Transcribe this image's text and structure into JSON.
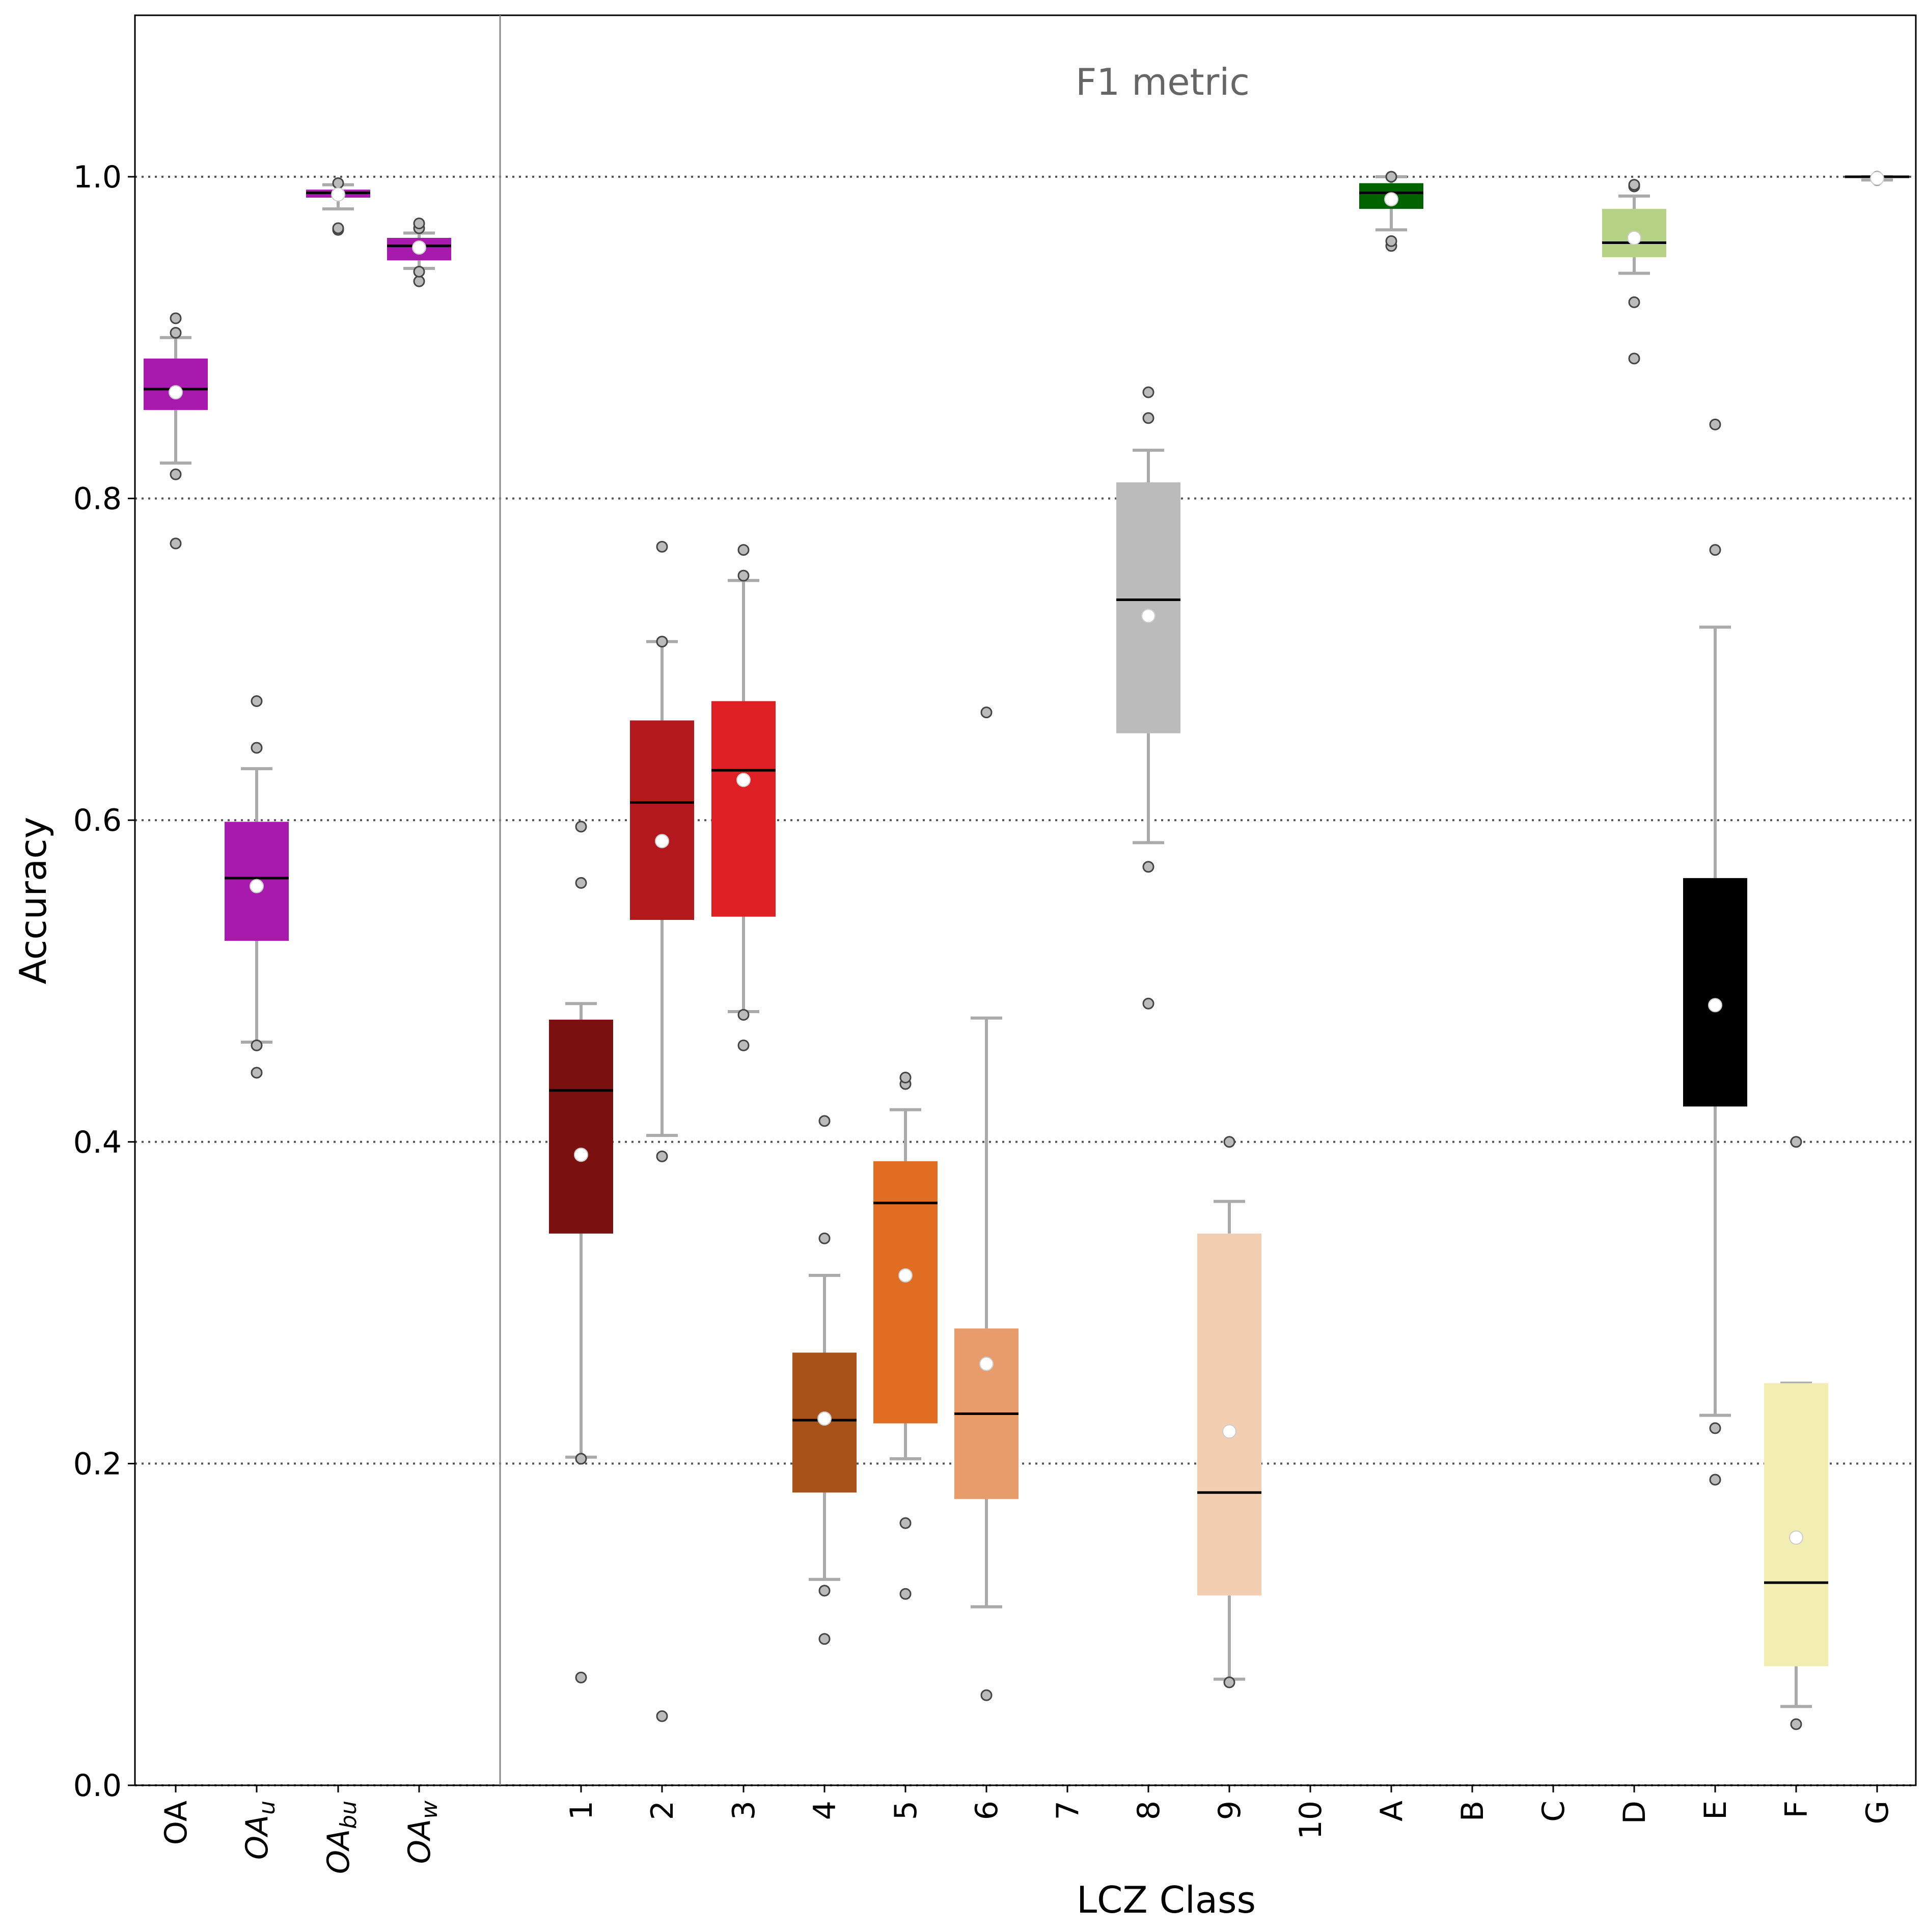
{
  "chart_data": {
    "type": "box",
    "title": "",
    "annotation": "F1 metric",
    "xlabel": "LCZ Class",
    "ylabel": "Accuracy",
    "ylim": [
      0.0,
      1.1
    ],
    "yticks": [
      "0.0",
      "0.2",
      "0.4",
      "0.6",
      "0.8",
      "1.0"
    ],
    "grid": "horizontal dotted at y ticks",
    "groups": [
      {
        "label": "OA",
        "sub": "",
        "color": "#a81aad",
        "q1": 0.855,
        "median": 0.868,
        "q3": 0.887,
        "mean": 0.866,
        "whislo": 0.822,
        "whishi": 0.9,
        "fliers": [
          0.772,
          0.815,
          0.903,
          0.912
        ]
      },
      {
        "label": "OA",
        "sub": "u",
        "color": "#a81aad",
        "q1": 0.525,
        "median": 0.564,
        "q3": 0.599,
        "mean": 0.559,
        "whislo": 0.462,
        "whishi": 0.632,
        "fliers": [
          0.443,
          0.46,
          0.645,
          0.674
        ]
      },
      {
        "label": "OA",
        "sub": "bu",
        "color": "#a81aad",
        "q1": 0.987,
        "median": 0.99,
        "q3": 0.992,
        "mean": 0.989,
        "whislo": 0.98,
        "whishi": 0.995,
        "fliers": [
          0.967,
          0.968,
          0.996
        ]
      },
      {
        "label": "OA",
        "sub": "w",
        "color": "#a81aad",
        "q1": 0.948,
        "median": 0.957,
        "q3": 0.962,
        "mean": 0.956,
        "whislo": 0.943,
        "whishi": 0.965,
        "fliers": [
          0.935,
          0.941,
          0.968,
          0.971
        ]
      },
      {
        "label": "1",
        "sub": "",
        "color": "#7b1010",
        "q1": 0.343,
        "median": 0.432,
        "q3": 0.476,
        "mean": 0.392,
        "whislo": 0.204,
        "whishi": 0.486,
        "fliers": [
          0.067,
          0.203,
          0.561,
          0.596
        ]
      },
      {
        "label": "2",
        "sub": "",
        "color": "#b3191c",
        "q1": 0.538,
        "median": 0.611,
        "q3": 0.662,
        "mean": 0.587,
        "whislo": 0.404,
        "whishi": 0.711,
        "fliers": [
          0.043,
          0.391,
          0.711,
          0.77
        ]
      },
      {
        "label": "3",
        "sub": "",
        "color": "#de2024",
        "q1": 0.54,
        "median": 0.631,
        "q3": 0.674,
        "mean": 0.625,
        "whislo": 0.481,
        "whishi": 0.749,
        "fliers": [
          0.46,
          0.479,
          0.752,
          0.768
        ]
      },
      {
        "label": "4",
        "sub": "",
        "color": "#a8521a",
        "q1": 0.182,
        "median": 0.227,
        "q3": 0.269,
        "mean": 0.228,
        "whislo": 0.128,
        "whishi": 0.317,
        "fliers": [
          0.091,
          0.121,
          0.34,
          0.413
        ]
      },
      {
        "label": "5",
        "sub": "",
        "color": "#e06d22",
        "q1": 0.225,
        "median": 0.362,
        "q3": 0.388,
        "mean": 0.317,
        "whislo": 0.203,
        "whishi": 0.42,
        "fliers": [
          0.119,
          0.163,
          0.436,
          0.44
        ]
      },
      {
        "label": "6",
        "sub": "",
        "color": "#e99c6b",
        "q1": 0.178,
        "median": 0.231,
        "q3": 0.284,
        "mean": 0.262,
        "whislo": 0.111,
        "whishi": 0.477,
        "fliers": [
          0.056,
          0.667
        ]
      },
      {
        "label": "7",
        "sub": "",
        "color": "",
        "empty": true
      },
      {
        "label": "8",
        "sub": "",
        "color": "#bbbbbb",
        "q1": 0.654,
        "median": 0.737,
        "q3": 0.81,
        "mean": 0.727,
        "whislo": 0.586,
        "whishi": 0.83,
        "fliers": [
          0.486,
          0.571,
          0.85,
          0.866
        ]
      },
      {
        "label": "9",
        "sub": "",
        "color": "#f4ceb1",
        "q1": 0.118,
        "median": 0.182,
        "q3": 0.343,
        "mean": 0.22,
        "whislo": 0.066,
        "whishi": 0.363,
        "fliers": [
          0.064,
          0.4
        ]
      },
      {
        "label": "10",
        "sub": "",
        "color": "",
        "empty": true
      },
      {
        "label": "A",
        "sub": "",
        "color": "#006300",
        "q1": 0.98,
        "median": 0.99,
        "q3": 0.996,
        "mean": 0.986,
        "whislo": 0.967,
        "whishi": 1.0,
        "fliers": [
          0.957,
          0.96,
          1.0
        ]
      },
      {
        "label": "B",
        "sub": "",
        "color": "",
        "empty": true
      },
      {
        "label": "C",
        "sub": "",
        "color": "",
        "empty": true
      },
      {
        "label": "D",
        "sub": "",
        "color": "#b5d184",
        "q1": 0.95,
        "median": 0.959,
        "q3": 0.98,
        "mean": 0.962,
        "whislo": 0.94,
        "whishi": 0.988,
        "fliers": [
          0.887,
          0.922,
          0.994,
          0.995
        ]
      },
      {
        "label": "E",
        "sub": "",
        "color": "#000000",
        "q1": 0.422,
        "median": 0.494,
        "q3": 0.564,
        "mean": 0.485,
        "whislo": 0.23,
        "whishi": 0.72,
        "fliers": [
          0.19,
          0.222,
          0.768,
          0.846
        ]
      },
      {
        "label": "F",
        "sub": "",
        "color": "#f2eeb2",
        "q1": 0.074,
        "median": 0.126,
        "q3": 0.25,
        "mean": 0.154,
        "whislo": 0.049,
        "whishi": 0.25,
        "fliers": [
          0.038,
          0.4
        ]
      },
      {
        "label": "G",
        "sub": "",
        "color": "#d8d8d8",
        "q1": 0.999,
        "median": 1.0,
        "q3": 1.0,
        "mean": 0.999,
        "whislo": 0.998,
        "whishi": 1.0,
        "fliers": [
          0.998,
          1.0
        ]
      }
    ]
  }
}
